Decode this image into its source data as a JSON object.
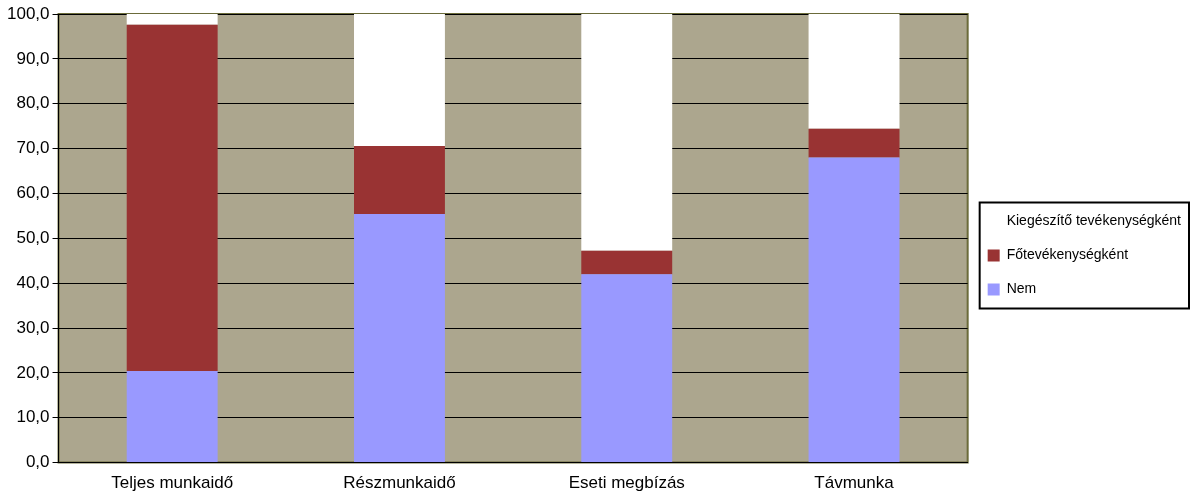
{
  "chart_data": {
    "type": "bar",
    "stacked": true,
    "categories": [
      "Teljes munkaidő",
      "Részmunkaidő",
      "Eseti megbízás",
      "Távmunka"
    ],
    "series": [
      {
        "name": "Nem",
        "color": "#9999ff",
        "values": [
          20.4,
          55.4,
          42.0,
          68.0
        ]
      },
      {
        "name": "Főtevékenységként",
        "color": "#993333",
        "values": [
          77.2,
          15.2,
          5.2,
          6.4
        ]
      },
      {
        "name": "Kiegészítő tevékenységként",
        "color": "#ffffff",
        "values": [
          2.4,
          29.4,
          52.8,
          25.6
        ]
      }
    ],
    "ylim": [
      0,
      100
    ],
    "yticks": [
      {
        "value": 0,
        "label": "0,0"
      },
      {
        "value": 10,
        "label": "10,0"
      },
      {
        "value": 20,
        "label": "20,0"
      },
      {
        "value": 30,
        "label": "30,0"
      },
      {
        "value": 40,
        "label": "40,0"
      },
      {
        "value": 50,
        "label": "50,0"
      },
      {
        "value": 60,
        "label": "60,0"
      },
      {
        "value": 70,
        "label": "70,0"
      },
      {
        "value": 80,
        "label": "80,0"
      },
      {
        "value": 90,
        "label": "90,0"
      },
      {
        "value": 100,
        "label": "100,0"
      }
    ],
    "grid": "y",
    "legend": "right"
  }
}
